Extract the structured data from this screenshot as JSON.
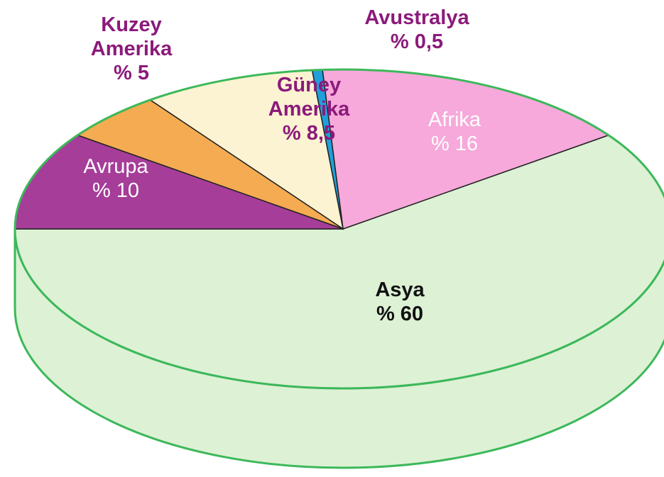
{
  "chart_data": {
    "type": "pie",
    "categories": [
      "Asya",
      "Afrika",
      "Avustralya",
      "Güney Amerika",
      "Kuzey Amerika",
      "Avrupa"
    ],
    "values": [
      60,
      16,
      0.5,
      8.5,
      5,
      10
    ],
    "value_labels": [
      "% 60",
      "% 16",
      "% 0,5",
      "% 8,5",
      "% 5",
      "% 10"
    ],
    "colors": [
      "#ddf1d5",
      "#f6a9da",
      "#1f9fdc",
      "#fcf3d2",
      "#f4ab52",
      "#a63d99"
    ]
  }
}
